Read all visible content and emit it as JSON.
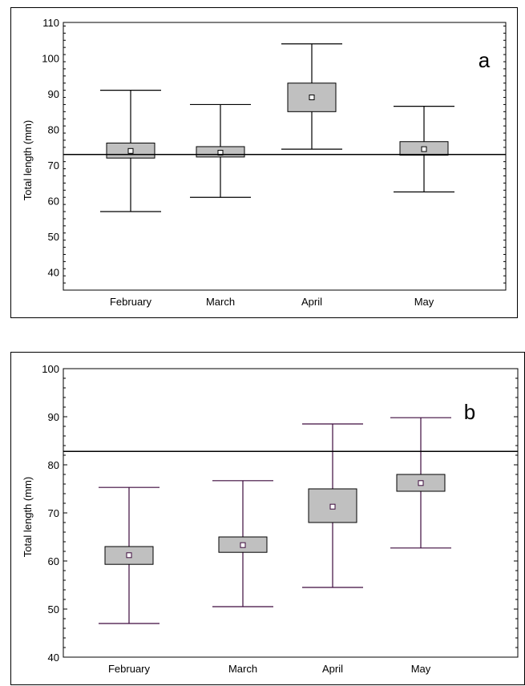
{
  "chart_data": [
    {
      "type": "box",
      "panel_label": "a",
      "ylabel": "Total length (mm)",
      "ylim": [
        35,
        110
      ],
      "yticks": [
        40,
        50,
        60,
        70,
        80,
        90,
        100,
        110
      ],
      "categories": [
        "February",
        "March",
        "April",
        "May"
      ],
      "mean": [
        74,
        73.5,
        89,
        74.5
      ],
      "box_low": [
        72,
        72.3,
        85,
        72.8
      ],
      "box_high": [
        76.2,
        75.2,
        93,
        76.6
      ],
      "whisker_low": [
        57,
        61,
        74.5,
        62.5
      ],
      "whisker_high": [
        91,
        87,
        104,
        86.5
      ],
      "reference_line": 73,
      "line_color": "#000000",
      "box_fill": "#c0c0c0"
    },
    {
      "type": "box",
      "panel_label": "b",
      "ylabel": "Total length (mm)",
      "ylim": [
        40,
        100
      ],
      "yticks": [
        40,
        50,
        60,
        70,
        80,
        90,
        100
      ],
      "categories": [
        "February",
        "March",
        "April",
        "May"
      ],
      "mean": [
        61.2,
        63.3,
        71.3,
        76.2
      ],
      "box_low": [
        59.3,
        61.8,
        68,
        74.5
      ],
      "box_high": [
        63,
        65,
        75,
        78
      ],
      "whisker_low": [
        47,
        50.5,
        54.5,
        62.7
      ],
      "whisker_high": [
        75.3,
        76.7,
        88.5,
        89.8
      ],
      "reference_line": 82.8,
      "line_color": "#3d0a3d",
      "box_fill": "#c0c0c0"
    }
  ]
}
